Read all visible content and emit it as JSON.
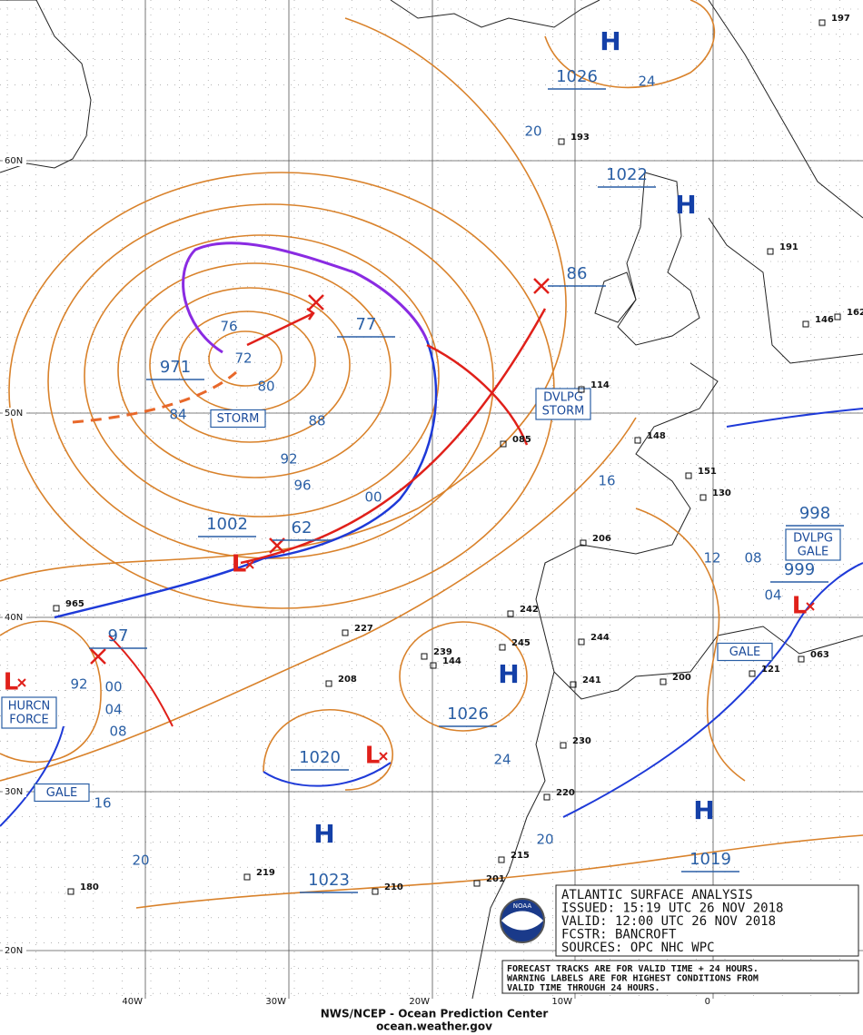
{
  "map": {
    "latitudes": [
      "60N",
      "50N",
      "40N",
      "30N",
      "20N"
    ],
    "longitudes": [
      "40W",
      "30W",
      "20W",
      "10W",
      "0"
    ],
    "high_symbols": [
      "H",
      "H",
      "H",
      "H",
      "H"
    ],
    "low_symbols": [
      "L",
      "L",
      "L",
      "L"
    ],
    "pressure_labels": [
      "1026",
      "1022",
      "86",
      "77",
      "971",
      "1002",
      "62",
      "97",
      "1026",
      "1020",
      "1023",
      "1019",
      "998",
      "999"
    ],
    "isobar_labels": [
      "24",
      "20",
      "76",
      "72",
      "80",
      "84",
      "88",
      "92",
      "96",
      "00",
      "16",
      "12",
      "08",
      "04",
      "92",
      "00",
      "04",
      "08",
      "16",
      "20",
      "24",
      "20"
    ],
    "warnings": [
      [
        "STORM"
      ],
      [
        "DVLPG",
        "STORM"
      ],
      [
        "GALE"
      ],
      [
        "HURCN",
        "FORCE"
      ],
      [
        "DVLPG",
        "GALE"
      ],
      [
        "GALE"
      ]
    ],
    "stations": [
      "193",
      "114",
      "206",
      "242",
      "244",
      "227",
      "239",
      "144",
      "245",
      "208",
      "241",
      "230",
      "220",
      "215",
      "201",
      "219",
      "180",
      "210",
      "200",
      "063",
      "121",
      "151",
      "130",
      "146",
      "162",
      "197",
      "191",
      "085",
      "965",
      "148"
    ]
  },
  "info": {
    "lines": [
      "ATLANTIC SURFACE ANALYSIS",
      "ISSUED: 15:19 UTC 26 NOV 2018",
      "VALID:  12:00 UTC 26 NOV 2018",
      "FCSTR:  BANCROFT",
      "SOURCES: OPC NHC WPC"
    ],
    "logo": "NOAA"
  },
  "notes": [
    "FORECAST TRACKS ARE FOR VALID TIME + 24 HOURS.",
    "WARNING LABELS ARE FOR HIGHEST CONDITIONS FROM",
    "VALID TIME THROUGH 24 HOURS."
  ],
  "footer": {
    "org": "NWS/NCEP - Ocean Prediction Center",
    "url": "ocean.weather.gov"
  }
}
